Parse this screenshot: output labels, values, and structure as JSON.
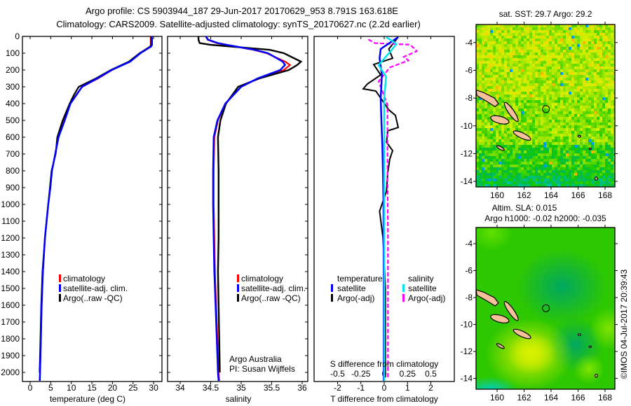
{
  "header": {
    "line1": "Argo profile: CS 5903944_187 29-Jun-2017 20170629_953 8.791S 163.618E",
    "line2": "Climatology: CARS2009. Satellite-adjusted climatology: synTS_20170627.nc (2.2d earlier)"
  },
  "colors": {
    "climatology": "#ff0000",
    "satellite": "#0000ff",
    "argo": "#000000",
    "sal_satellite": "#00e5ee",
    "sal_argo": "#ff00ff",
    "land": "#f5c09a"
  },
  "chart_data": [
    {
      "type": "line",
      "id": "temperature",
      "xlabel": "temperature (deg C)",
      "ylabel": "",
      "xlim": [
        -2,
        32
      ],
      "ylim": [
        2055,
        0
      ],
      "xticks": [
        0,
        5,
        10,
        15,
        20,
        25,
        30
      ],
      "yticks": [
        0,
        100,
        200,
        300,
        400,
        500,
        600,
        700,
        800,
        900,
        1000,
        1100,
        1200,
        1300,
        1400,
        1500,
        1600,
        1700,
        1800,
        1900,
        2000
      ],
      "legend": [
        "climatology",
        "satellite-adj. clim.",
        "Argo(..raw -QC)"
      ],
      "depth": [
        0,
        50,
        60,
        100,
        150,
        200,
        250,
        300,
        350,
        400,
        500,
        600,
        700,
        800,
        900,
        1000,
        1200,
        1400,
        1600,
        1800,
        2000,
        2050
      ],
      "series": [
        {
          "name": "climatology",
          "values": [
            29.3,
            29.3,
            29.2,
            26.7,
            24.2,
            19.9,
            16.5,
            12.6,
            11.1,
            9.7,
            8.3,
            6.8,
            6.1,
            5.3,
            4.9,
            4.4,
            3.6,
            3.1,
            2.8,
            2.6,
            2.4,
            2.3
          ]
        },
        {
          "name": "satellite-adj. clim.",
          "values": [
            29.6,
            29.6,
            29.4,
            26.8,
            24.3,
            19.8,
            16.3,
            12.6,
            11.2,
            9.8,
            8.4,
            6.9,
            6.1,
            5.3,
            4.9,
            4.4,
            3.6,
            3.1,
            2.8,
            2.6,
            2.4,
            2.35
          ]
        },
        {
          "name": "Argo(..raw -QC)",
          "values": [
            29.4,
            29.4,
            29.2,
            26.6,
            24.0,
            19.6,
            16.0,
            11.8,
            10.6,
            9.6,
            7.9,
            6.6,
            6.2,
            5.2,
            4.8,
            4.4,
            3.6,
            3.0,
            2.7,
            2.5,
            2.3,
            null
          ]
        }
      ]
    },
    {
      "type": "line",
      "id": "salinity",
      "xlabel": "salinity",
      "xlim": [
        33.85,
        36.15
      ],
      "ylim": [
        2055,
        0
      ],
      "xticks": [
        34,
        34.5,
        35,
        35.5,
        36
      ],
      "legend": [
        "climatology",
        "satellite-adj. clim.",
        "Argo(..raw -QC)"
      ],
      "annotation": [
        "Argo Australia",
        "PI: Susan Wijffels"
      ],
      "depth": [
        0,
        20,
        40,
        50,
        80,
        100,
        150,
        170,
        200,
        250,
        300,
        400,
        500,
        600,
        800,
        1000,
        1200,
        1400,
        1600,
        1800,
        2000,
        2050
      ],
      "series": [
        {
          "name": "climatology",
          "values": [
            34.42,
            34.45,
            34.6,
            34.74,
            35.2,
            35.42,
            35.72,
            35.8,
            35.7,
            35.28,
            35.0,
            34.74,
            34.62,
            34.56,
            34.55,
            34.55,
            34.56,
            34.57,
            34.59,
            34.61,
            34.63,
            34.64
          ]
        },
        {
          "name": "satellite-adj. clim.",
          "values": [
            34.42,
            34.46,
            34.62,
            34.76,
            35.22,
            35.44,
            35.68,
            35.72,
            35.64,
            35.27,
            35.0,
            34.74,
            34.61,
            34.55,
            34.54,
            34.54,
            34.55,
            34.56,
            34.58,
            34.6,
            34.62,
            34.63
          ]
        },
        {
          "name": "Argo(..raw -QC)",
          "values": [
            34.3,
            34.3,
            34.32,
            34.5,
            35.47,
            35.7,
            35.98,
            35.92,
            35.78,
            35.3,
            34.95,
            34.75,
            34.66,
            34.62,
            34.63,
            34.63,
            34.63,
            34.62,
            34.63,
            34.64,
            34.65,
            null
          ]
        }
      ]
    },
    {
      "type": "line",
      "id": "difference",
      "xlabel": "T difference from climatology",
      "xlabel2": "S difference from climatology",
      "xlim": [
        -3,
        3
      ],
      "xlim2": [
        -0.75,
        0.75
      ],
      "ylim": [
        2055,
        0
      ],
      "xticks": [
        -2,
        -1,
        0,
        1,
        2
      ],
      "xticks2": [
        -0.5,
        -0.25,
        0,
        0.25,
        0.5
      ],
      "legend_t_title": "temperature",
      "legend_s_title": "salinity",
      "legend_t": [
        "satellite",
        "Argo(-adj)"
      ],
      "legend_s": [
        "satellite",
        "Argo(-adj)"
      ],
      "series": [
        {
          "name": "T satellite",
          "axis": "T",
          "depth": [
            4,
            75,
            130,
            229,
            367,
            506,
            646,
            826,
            1000,
            1500,
            2050
          ],
          "values": [
            0.6,
            -0.15,
            -0.2,
            -0.1,
            -0.15,
            -0.12,
            -0.08,
            -0.05,
            -0.03,
            -0.02,
            -0.02
          ]
        },
        {
          "name": "T Argo(-adj)",
          "axis": "T",
          "depth": [
            4,
            75,
            130,
            167,
            229,
            283,
            312,
            325,
            367,
            437,
            470,
            542,
            562,
            630,
            680,
            729,
            812,
            921,
            1040,
            1200,
            1500,
            1800,
            2030
          ],
          "values": [
            0.6,
            0.2,
            0.36,
            -0.45,
            -0.15,
            -0.72,
            -0.9,
            -0.36,
            -0.15,
            0.2,
            0.48,
            0.6,
            0.15,
            0.1,
            0.36,
            0.24,
            0.15,
            0.1,
            -0.2,
            -0.05,
            0.05,
            0.05,
            0.05
          ]
        },
        {
          "name": "S satellite",
          "axis": "S",
          "depth": [
            4,
            32,
            46,
            88,
            171,
            240,
            367,
            600,
            1000,
            1500,
            2050
          ],
          "values": [
            0.02,
            0.1,
            0.13,
            0.07,
            -0.06,
            0.02,
            0.0,
            0.0,
            0.0,
            0.0,
            0.0
          ]
        },
        {
          "name": "S Argo(-adj)",
          "axis": "S",
          "depth": [
            18,
            40,
            49,
            88,
            122,
            143,
            185,
            268,
            325,
            408,
            547,
            785,
            1200,
            1600,
            2030
          ],
          "values": [
            -0.17,
            -0.1,
            0.28,
            0.35,
            0.21,
            0.26,
            0.06,
            -0.06,
            -0.02,
            0.035,
            0.035,
            0.035,
            0.04,
            0.04,
            0.04
          ]
        }
      ]
    },
    {
      "type": "heatmap",
      "id": "sst-map",
      "title": "sat. SST: 29.7 Argo: 29.2",
      "xlim": [
        158.4,
        168.7
      ],
      "ylim": [
        -14.4,
        -2.7
      ],
      "xticks": [
        160,
        162,
        164,
        166,
        168
      ],
      "yticks": [
        -4,
        -6,
        -8,
        -10,
        -12,
        -14
      ],
      "argo_position": {
        "lon": 163.618,
        "lat": -8.791
      }
    },
    {
      "type": "heatmap",
      "id": "sla-map",
      "title": "Altim. SLA: 0.015",
      "subtitle": "Argo h1000: -0.02 h2000: -0.035",
      "xlim": [
        158.4,
        168.7
      ],
      "ylim": [
        -14.4,
        -2.5
      ],
      "xticks": [
        160,
        162,
        164,
        166,
        168
      ],
      "yticks": [
        -4,
        -6,
        -8,
        -10,
        -12,
        -14
      ],
      "argo_position": {
        "lon": 163.618,
        "lat": -8.791
      }
    }
  ],
  "islands": [
    {
      "poly": [
        [
          158.45,
          -7.42
        ],
        [
          159.0,
          -7.6
        ],
        [
          159.8,
          -8.0
        ],
        [
          160.1,
          -8.4
        ],
        [
          159.85,
          -8.62
        ],
        [
          159.25,
          -8.25
        ],
        [
          158.5,
          -7.82
        ]
      ]
    },
    {
      "ellipse": [
        160.2,
        -9.57,
        0.7,
        0.26,
        15
      ]
    },
    {
      "ellipse": [
        161.05,
        -9.0,
        0.85,
        0.2,
        55
      ]
    },
    {
      "ellipse": [
        161.85,
        -10.7,
        0.7,
        0.2,
        25
      ]
    },
    {
      "ellipse": [
        160.25,
        -11.6,
        0.32,
        0.1,
        30
      ]
    },
    {
      "ellipse": [
        166.1,
        -10.75,
        0.1,
        0.07,
        0
      ]
    },
    {
      "ellipse": [
        167.35,
        -13.8,
        0.09,
        0.12,
        0
      ]
    },
    {
      "ellipse": [
        166.9,
        -11.65,
        0.08,
        0.06,
        0
      ]
    }
  ],
  "footer": {
    "stamp": "©IMOS 04-Jul-2017 20:39:43"
  }
}
